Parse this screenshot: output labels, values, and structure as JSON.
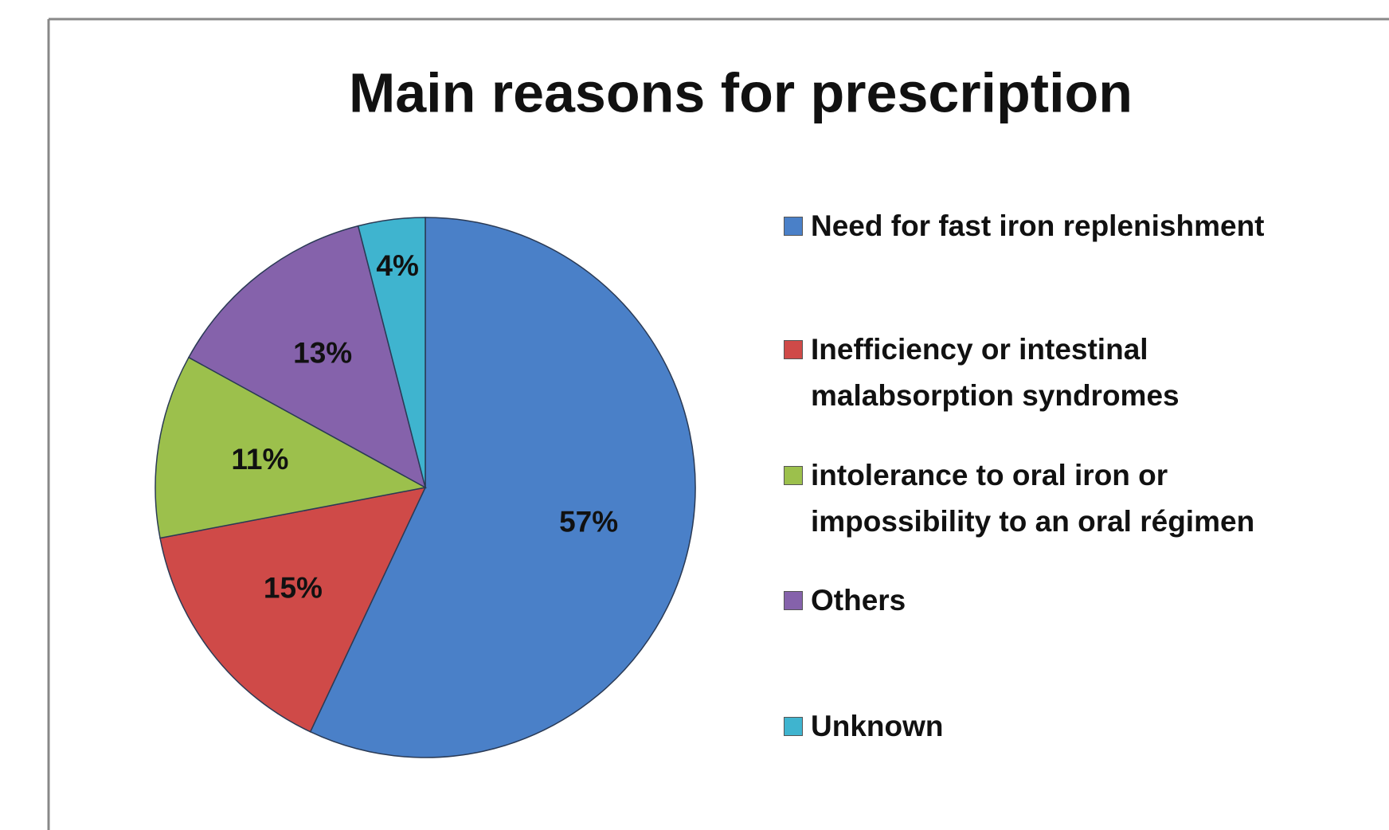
{
  "chart_data": {
    "type": "pie",
    "title": "Main reasons for prescription",
    "categories": [
      "Need for fast iron replenishment",
      "Inefficiency or intestinal malabsorption syndromes",
      "intolerance to oral iron or impossibility to an oral régimen",
      "Others",
      "Unknown"
    ],
    "values": [
      57,
      15,
      11,
      13,
      4
    ],
    "value_labels": [
      "57%",
      "15%",
      "11%",
      "13%",
      "4%"
    ],
    "colors": [
      "#4a80c8",
      "#cf4a48",
      "#9cc04c",
      "#8562ab",
      "#3fb4cf"
    ],
    "legend": "right"
  }
}
